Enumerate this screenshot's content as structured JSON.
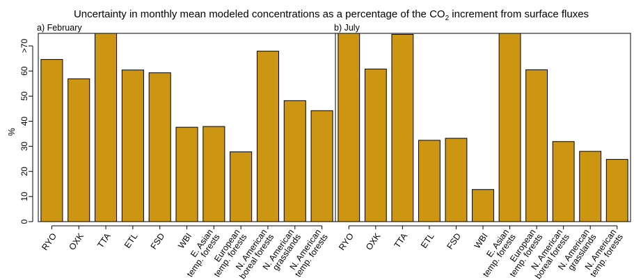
{
  "chart_data": {
    "type": "bar",
    "title_main": "Uncertainty in monthly mean modeled concentrations as a percentage of the CO",
    "title_sub": "2",
    "title_tail": " increment from surface fluxes",
    "ylabel": "%",
    "ylim": [
      0,
      75
    ],
    "yticks": [
      "0",
      "10",
      "20",
      "30",
      "40",
      "50",
      "60",
      ">70"
    ],
    "ytick_values": [
      0,
      10,
      20,
      30,
      40,
      50,
      60,
      70
    ],
    "bar_color": "#cc9612",
    "categories": [
      [
        "RYO"
      ],
      [
        "OXK"
      ],
      [
        "TTA"
      ],
      [
        "ETL"
      ],
      [
        "FSD"
      ],
      [
        "WBI"
      ],
      [
        "E. Asian",
        "temp. forests"
      ],
      [
        "European",
        "temp. forests"
      ],
      [
        "N. American",
        "boreal forests"
      ],
      [
        "N. American",
        "grasslands"
      ],
      [
        "N. American",
        "temp. forests"
      ]
    ],
    "panels": [
      {
        "label": "a) February",
        "values": [
          64.6,
          56.9,
          78,
          60.4,
          59.3,
          37.6,
          37.9,
          27.8,
          67.9,
          48.2,
          44.2
        ]
      },
      {
        "label": "b) July",
        "values": [
          78,
          60.8,
          74.6,
          32.4,
          33.2,
          12.8,
          78,
          60.5,
          31.9,
          28.0,
          24.8
        ]
      }
    ]
  }
}
